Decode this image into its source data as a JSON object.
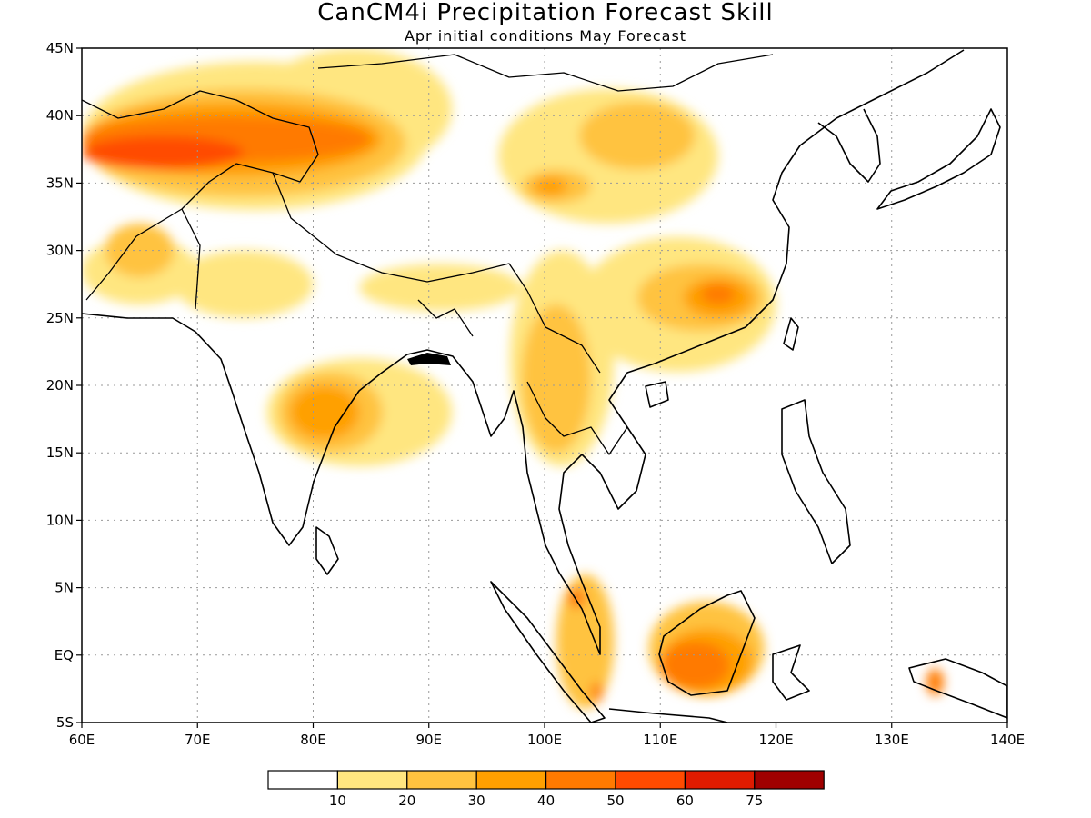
{
  "title": "CanCM4i Precipitation Forecast Skill",
  "subtitle": "Apr initial conditions  May Forecast",
  "map": {
    "lon_range": [
      60,
      140
    ],
    "lat_range": [
      -5,
      45
    ],
    "grid": true,
    "lon_ticks": [
      "60E",
      "70E",
      "80E",
      "90E",
      "100E",
      "110E",
      "120E",
      "130E",
      "140E"
    ],
    "lat_ticks": [
      "45N",
      "40N",
      "35N",
      "30N",
      "25N",
      "20N",
      "15N",
      "10N",
      "5N",
      "EQ",
      "5S"
    ]
  },
  "colorbar": {
    "colors": [
      "#ffffff",
      "#ffe680",
      "#ffc33f",
      "#ffa000",
      "#ff7a00",
      "#ff4b00",
      "#e01b00",
      "#a00000"
    ],
    "labels": [
      "10",
      "20",
      "30",
      "40",
      "50",
      "60",
      "75"
    ]
  },
  "regions": [
    {
      "name": "central-asia",
      "level": 1,
      "blobs": [
        [
          60,
          44,
          90,
          33
        ],
        [
          75,
          45,
          92,
          36
        ],
        [
          60,
          31,
          70,
          26
        ],
        [
          68,
          30,
          80,
          25
        ]
      ]
    },
    {
      "name": "central-asia",
      "level": 2,
      "blobs": [
        [
          60,
          42,
          88,
          34
        ],
        [
          62,
          32,
          68,
          28
        ]
      ]
    },
    {
      "name": "central-asia",
      "level": 3,
      "blobs": [
        [
          60,
          41,
          86,
          35.5
        ]
      ]
    },
    {
      "name": "central-asia",
      "level": 4,
      "blobs": [
        [
          60,
          40,
          85,
          36.5
        ]
      ]
    },
    {
      "name": "central-asia",
      "level": 5,
      "blobs": [
        [
          60,
          38.5,
          74,
          36
        ]
      ]
    },
    {
      "name": "tibet-north",
      "level": 1,
      "blobs": [
        [
          96,
          42,
          115,
          32
        ]
      ]
    },
    {
      "name": "tibet-north",
      "level": 2,
      "blobs": [
        [
          103,
          41,
          113,
          36
        ],
        [
          98,
          36,
          104,
          33.5
        ]
      ]
    },
    {
      "name": "tibet-north",
      "level": 3,
      "blobs": [
        [
          99,
          35.5,
          102,
          34
        ]
      ]
    },
    {
      "name": "himalaya",
      "level": 1,
      "blobs": [
        [
          84,
          29,
          98,
          25.5
        ]
      ]
    },
    {
      "name": "india-central",
      "level": 1,
      "blobs": [
        [
          76,
          22,
          92,
          14
        ]
      ]
    },
    {
      "name": "india-central",
      "level": 2,
      "blobs": [
        [
          77,
          21,
          86,
          15
        ]
      ]
    },
    {
      "name": "india-central",
      "level": 3,
      "blobs": [
        [
          78,
          20,
          84,
          16
        ]
      ]
    },
    {
      "name": "indochina",
      "level": 1,
      "blobs": [
        [
          97,
          30,
          106,
          14
        ]
      ]
    },
    {
      "name": "indochina",
      "level": 2,
      "blobs": [
        [
          98,
          26,
          104,
          15
        ]
      ]
    },
    {
      "name": "south-china",
      "level": 1,
      "blobs": [
        [
          103,
          31,
          120,
          21
        ]
      ]
    },
    {
      "name": "south-china",
      "level": 2,
      "blobs": [
        [
          108,
          29,
          119,
          24
        ]
      ]
    },
    {
      "name": "south-china",
      "level": 3,
      "blobs": [
        [
          112,
          28,
          118,
          25
        ]
      ]
    },
    {
      "name": "south-china",
      "level": 4,
      "blobs": [
        [
          113.5,
          27.5,
          116.5,
          26
        ]
      ]
    },
    {
      "name": "borneo",
      "level": 2,
      "blobs": [
        [
          109,
          4,
          119,
          -3
        ]
      ]
    },
    {
      "name": "borneo",
      "level": 3,
      "blobs": [
        [
          110,
          2,
          118,
          -3
        ]
      ]
    },
    {
      "name": "borneo",
      "level": 4,
      "blobs": [
        [
          110,
          1,
          116,
          -2.5
        ]
      ]
    },
    {
      "name": "sumatra-malaya",
      "level": 2,
      "blobs": [
        [
          101,
          6,
          106,
          -4
        ]
      ]
    },
    {
      "name": "sumatra-malaya",
      "level": 4,
      "blobs": [
        [
          102,
          5,
          103.5,
          3.5
        ],
        [
          104,
          -2,
          105,
          -3.5
        ]
      ]
    },
    {
      "name": "new-guinea",
      "level": 4,
      "blobs": [
        [
          133,
          -1,
          134.5,
          -3
        ]
      ]
    }
  ]
}
